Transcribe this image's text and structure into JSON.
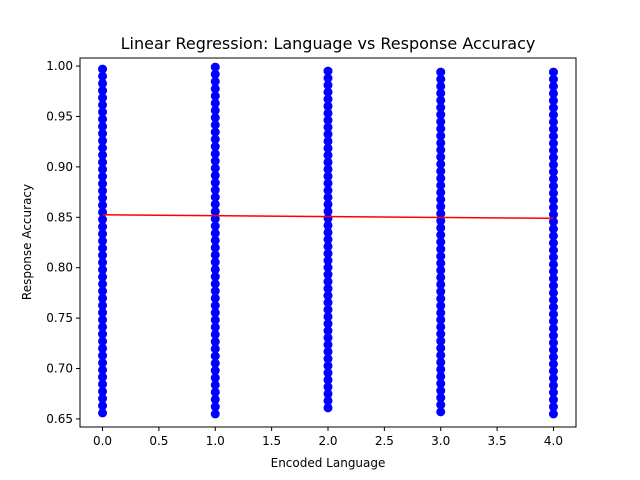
{
  "chart_data": {
    "type": "scatter",
    "title": "Linear Regression: Language vs Response Accuracy",
    "xlabel": "Encoded Language",
    "ylabel": "Response Accuracy",
    "xlim": [
      -0.2,
      4.2
    ],
    "ylim": [
      0.642,
      1.008
    ],
    "xticks": [
      0.0,
      0.5,
      1.0,
      1.5,
      2.0,
      2.5,
      3.0,
      3.5,
      4.0
    ],
    "xtick_labels": [
      "0.0",
      "0.5",
      "1.0",
      "1.5",
      "2.0",
      "2.5",
      "3.0",
      "3.5",
      "4.0"
    ],
    "yticks": [
      0.65,
      0.7,
      0.75,
      0.8,
      0.85,
      0.9,
      0.95,
      1.0
    ],
    "ytick_labels": [
      "0.65",
      "0.70",
      "0.75",
      "0.80",
      "0.85",
      "0.90",
      "0.95",
      "1.00"
    ],
    "grid": false,
    "series": [
      {
        "kind": "scatter",
        "color": "#0000ff",
        "groups": [
          {
            "x": 0,
            "y_min": 0.656,
            "y_max": 0.997
          },
          {
            "x": 1,
            "y_min": 0.655,
            "y_max": 0.999
          },
          {
            "x": 2,
            "y_min": 0.661,
            "y_max": 0.995
          },
          {
            "x": 3,
            "y_min": 0.657,
            "y_max": 0.994
          },
          {
            "x": 4,
            "y_min": 0.655,
            "y_max": 0.994
          }
        ]
      },
      {
        "kind": "line",
        "color": "#ff0000",
        "x": [
          0,
          4
        ],
        "y": [
          0.8525,
          0.849
        ]
      }
    ]
  }
}
